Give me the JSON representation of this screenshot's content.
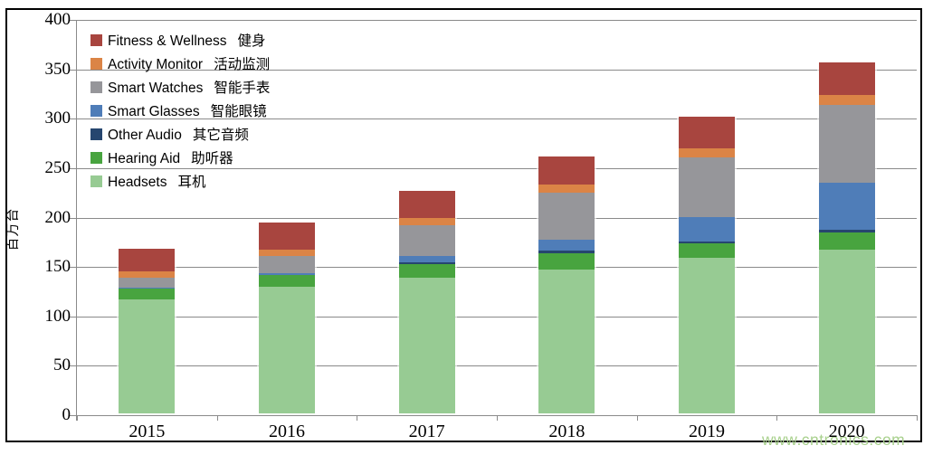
{
  "watermark": "www.cntronics.com",
  "chart_data": {
    "type": "bar",
    "stacked": true,
    "title": "",
    "xlabel": "",
    "ylabel": "百万台",
    "ylim": [
      0,
      400
    ],
    "ytick_step": 50,
    "yticks": [
      0,
      50,
      100,
      150,
      200,
      250,
      300,
      350,
      400
    ],
    "grid": true,
    "legend_position": "top-left",
    "categories": [
      "2015",
      "2016",
      "2017",
      "2018",
      "2019",
      "2020"
    ],
    "series": [
      {
        "name": "Fitness & Wellness",
        "name_zh": "健身",
        "color": "#a8453f",
        "values": [
          23,
          27,
          27,
          28,
          32,
          33
        ]
      },
      {
        "name": "Activity Monitor",
        "name_zh": "活动监测",
        "color": "#db8446",
        "values": [
          7,
          7,
          8,
          9,
          9,
          10
        ]
      },
      {
        "name": "Smart Watches",
        "name_zh": "智能手表",
        "color": "#96969a",
        "values": [
          10,
          17,
          31,
          47,
          60,
          79
        ]
      },
      {
        "name": "Smart Glasses",
        "name_zh": "智能眼镜",
        "color": "#4f7db8",
        "values": [
          1,
          2,
          6,
          11,
          25,
          47
        ]
      },
      {
        "name": "Other Audio",
        "name_zh": "其它音频",
        "color": "#26466f",
        "values": [
          0,
          0,
          2,
          3,
          2,
          3
        ]
      },
      {
        "name": "Hearing Aid",
        "name_zh": "助听器",
        "color": "#48a43f",
        "values": [
          11,
          12,
          14,
          16,
          15,
          17
        ]
      },
      {
        "name": "Headsets",
        "name_zh": "耳机",
        "color": "#97cb93",
        "values": [
          115,
          128,
          137,
          146,
          157,
          166
        ]
      }
    ],
    "totals": [
      167,
      193,
      225,
      260,
      300,
      355
    ]
  }
}
